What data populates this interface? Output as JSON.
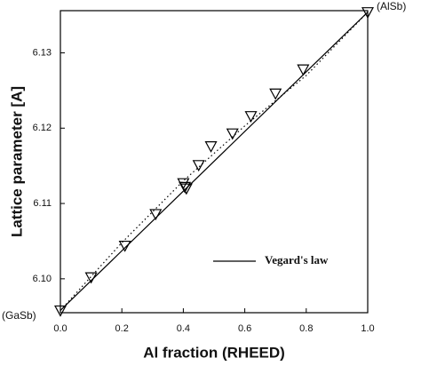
{
  "chart_data": {
    "type": "scatter",
    "x_label": "Al fraction (RHEED)",
    "y_label": "Lattice parameter [A]",
    "xlim": [
      0,
      1.0
    ],
    "ylim": [
      6.0955,
      6.1356
    ],
    "xticks": [
      {
        "value": 0,
        "label": "0.0"
      },
      0.2,
      0.4,
      0.6,
      0.8,
      {
        "value": 1,
        "label": "1.0"
      }
    ],
    "yticks": [
      {
        "value": 6.1,
        "label": "6.10"
      },
      6.11,
      6.12,
      6.13
    ],
    "series": [
      {
        "name": "Vegard's law",
        "style": "solid",
        "color": "#000000",
        "x": [
          0,
          1.0
        ],
        "values": [
          6.0958,
          6.1354
        ]
      },
      {
        "style": "dotted",
        "color": "#000000",
        "x": [
          0,
          0.2,
          0.4,
          0.6,
          0.8,
          1.0
        ],
        "values": [
          6.0958,
          6.1048,
          6.113,
          6.1203,
          6.127,
          6.1354
        ]
      },
      {
        "style": "marker",
        "color": "#000000",
        "x": [
          0,
          0.1,
          0.21,
          0.31,
          0.4,
          0.405,
          0.41,
          0.45,
          0.49,
          0.56,
          0.62,
          0.7,
          0.79,
          1.0
        ],
        "values": [
          6.0958,
          6.1002,
          6.1044,
          6.1086,
          6.1127,
          6.1122,
          6.112,
          6.1151,
          6.1176,
          6.1193,
          6.1216,
          6.1246,
          6.1278,
          6.1354
        ]
      }
    ],
    "annotations": [
      "(GaSb)",
      "(AlSb)"
    ]
  }
}
